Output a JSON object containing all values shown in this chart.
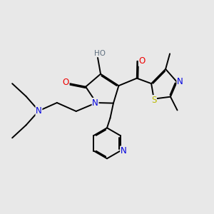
{
  "background_color": "#e8e8e8",
  "atom_colors": {
    "C": "#000000",
    "N": "#0000dd",
    "O": "#ee0000",
    "S": "#bbbb00",
    "H": "#607080"
  },
  "bond_color": "#000000",
  "bond_width": 1.4,
  "title": ""
}
